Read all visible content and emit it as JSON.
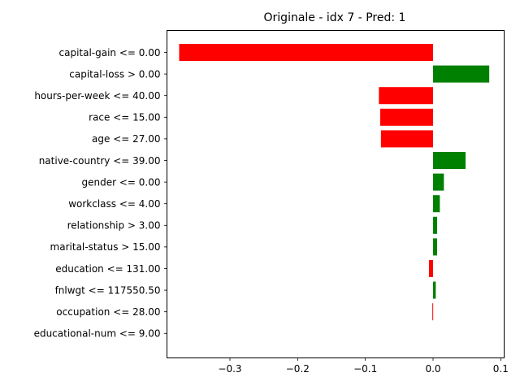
{
  "chart_data": {
    "type": "bar",
    "orientation": "horizontal",
    "title": "Originale - idx 7 - Pred: 1",
    "xlabel": "",
    "ylabel": "",
    "xlim": [
      -0.393,
      0.105
    ],
    "xticks": [
      -0.3,
      -0.2,
      -0.1,
      0.0,
      0.1
    ],
    "xtick_labels": [
      "−0.3",
      "−0.2",
      "−0.1",
      "0.0",
      "0.1"
    ],
    "categories": [
      "capital-gain <= 0.00",
      "capital-loss > 0.00",
      "hours-per-week <= 40.00",
      "race <= 15.00",
      "age <= 27.00",
      "native-country <= 39.00",
      "gender <= 0.00",
      "workclass <= 4.00",
      "relationship > 3.00",
      "marital-status > 15.00",
      "education <= 131.00",
      "fnlwgt <= 117550.50",
      "occupation <= 28.00",
      "educational-num <= 9.00"
    ],
    "values": [
      -0.375,
      0.083,
      -0.08,
      -0.078,
      -0.077,
      0.048,
      0.016,
      0.01,
      0.006,
      0.006,
      -0.006,
      0.004,
      -0.001,
      0.0
    ],
    "grid": false,
    "colors": {
      "positive": "#008000",
      "negative": "#ff0000"
    }
  }
}
